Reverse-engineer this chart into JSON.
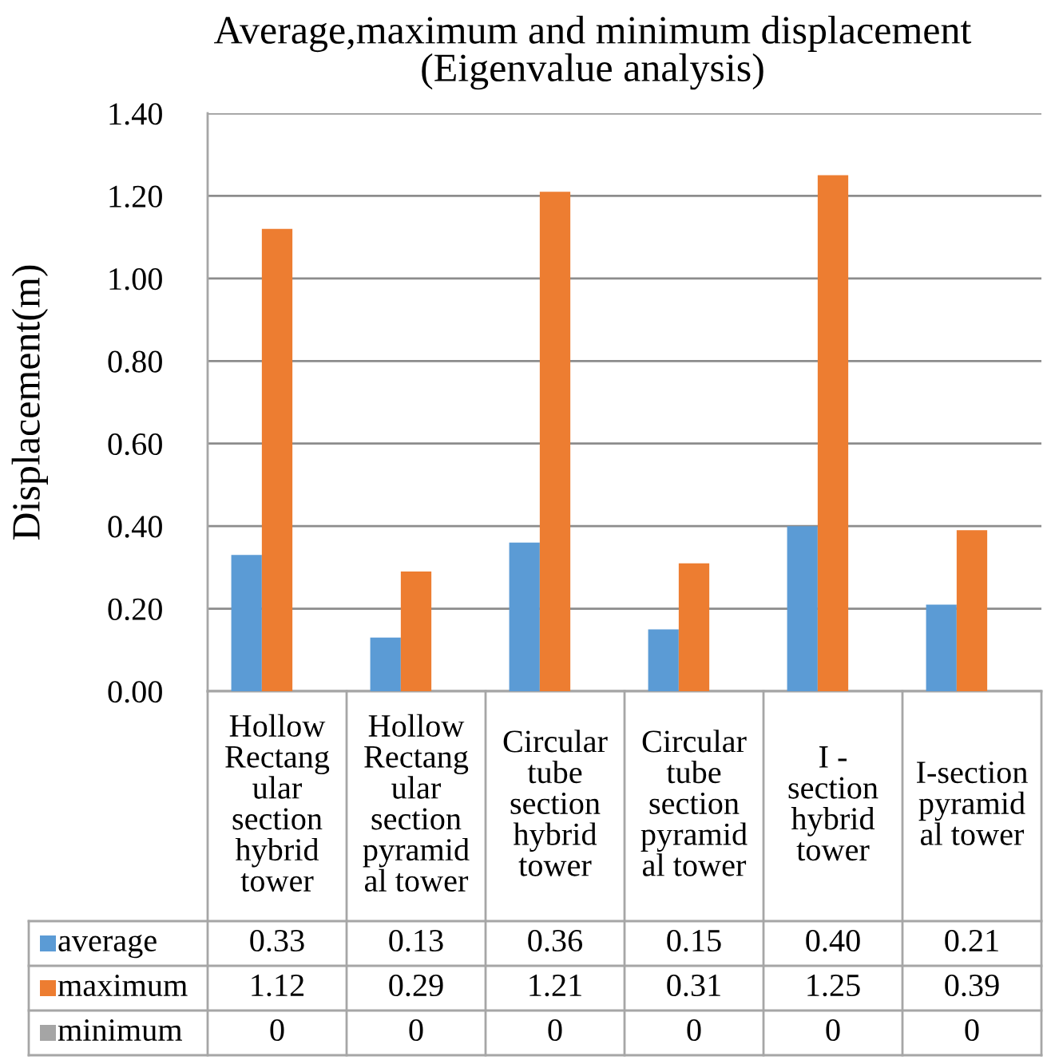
{
  "chart_data": {
    "type": "bar",
    "title": "Average,maximum and minimum displacement\n(Eigenvalue analysis)",
    "ylabel": "Displacement(m)",
    "categories": [
      "Hollow Rectangular section hybrid tower",
      "Hollow Rectangular section pyramidal tower",
      "Circular tube section hybrid tower",
      "Circular tube section pyramidal tower",
      "I - section hybrid tower",
      "I-section pyramidal tower"
    ],
    "series": [
      {
        "name": "average",
        "color": "#5b9bd5",
        "values": [
          0.33,
          0.13,
          0.36,
          0.15,
          0.4,
          0.21
        ],
        "value_labels": [
          "0.33",
          "0.13",
          "0.36",
          "0.15",
          "0.40",
          "0.21"
        ]
      },
      {
        "name": "maximum",
        "color": "#ed7d31",
        "values": [
          1.12,
          0.29,
          1.21,
          0.31,
          1.25,
          0.39
        ],
        "value_labels": [
          "1.12",
          "0.29",
          "1.21",
          "0.31",
          "1.25",
          "0.39"
        ]
      },
      {
        "name": "minimum",
        "color": "#a5a5a5",
        "values": [
          0,
          0,
          0,
          0,
          0,
          0
        ],
        "value_labels": [
          "0",
          "0",
          "0",
          "0",
          "0",
          "0"
        ]
      }
    ],
    "ylim": [
      0,
      1.4
    ],
    "yticks": [
      {
        "value": 0,
        "label": "0.00"
      },
      {
        "value": 0.2,
        "label": "0.20"
      },
      {
        "value": 0.4,
        "label": "0.40"
      },
      {
        "value": 0.6,
        "label": "0.60"
      },
      {
        "value": 0.8,
        "label": "0.80"
      },
      {
        "value": 1.0,
        "label": "1.00"
      },
      {
        "value": 1.2,
        "label": "1.20"
      },
      {
        "value": 1.4,
        "label": "1.40"
      }
    ],
    "grid": "y",
    "legend": "bottom left"
  }
}
